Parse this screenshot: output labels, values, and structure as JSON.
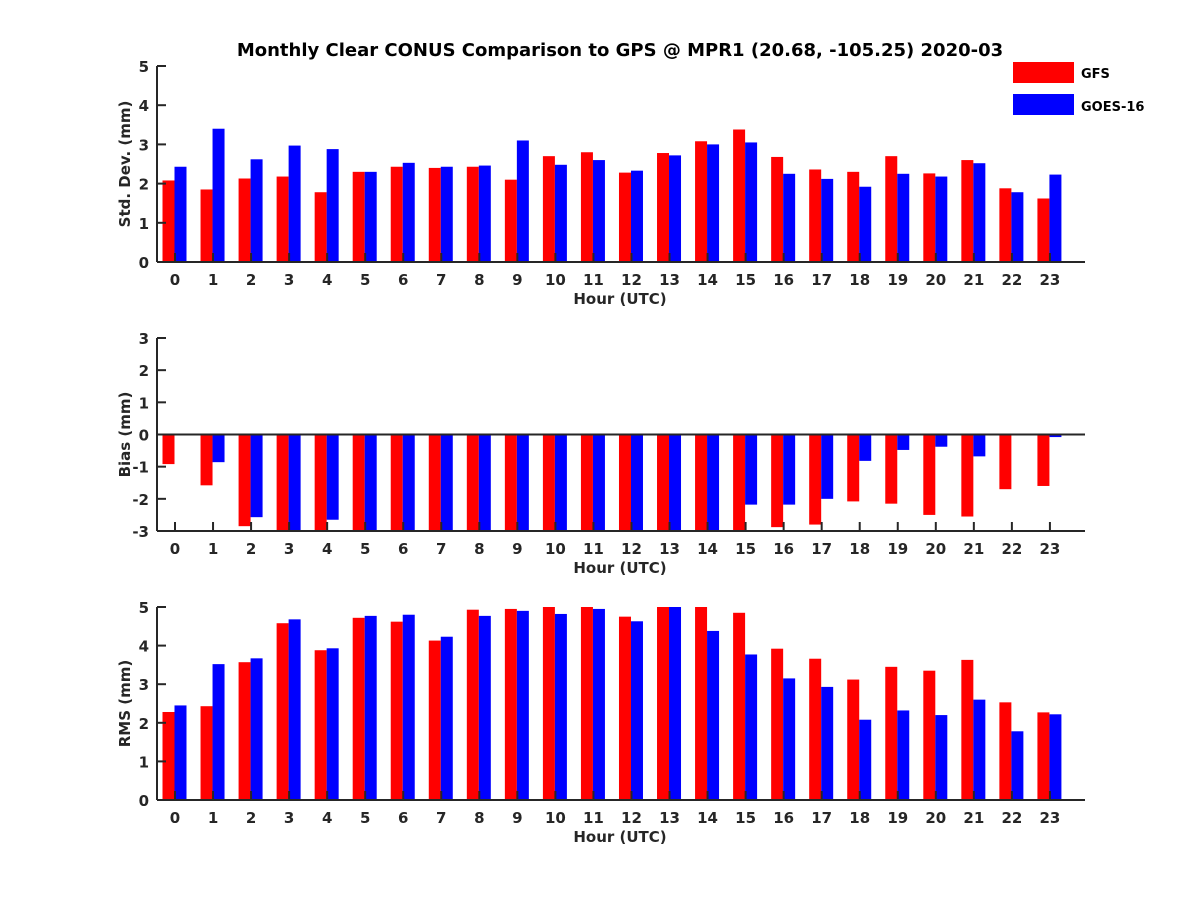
{
  "chart_data": {
    "type": "bar",
    "title": "Monthly Clear CONUS Comparison to GPS @ MPR1 (20.68, -105.25) 2020-03",
    "legend": {
      "placement": "top-right",
      "entries": [
        {
          "name": "GFS",
          "color": "#ff0000"
        },
        {
          "name": "GOES-16",
          "color": "#0000ff"
        }
      ]
    },
    "categories": [
      "0",
      "1",
      "2",
      "3",
      "4",
      "5",
      "6",
      "7",
      "8",
      "9",
      "10",
      "11",
      "12",
      "13",
      "14",
      "15",
      "16",
      "17",
      "18",
      "19",
      "20",
      "21",
      "22",
      "23"
    ],
    "panels": [
      {
        "id": "stddev",
        "xlabel": "Hour (UTC)",
        "ylabel": "Std. Dev. (mm)",
        "ylim": [
          0,
          5
        ],
        "yticks": [
          "0",
          "1",
          "2",
          "3",
          "4",
          "5"
        ],
        "ytick_values": [
          0,
          1,
          2,
          3,
          4,
          5
        ],
        "series": [
          {
            "name": "GFS",
            "values": [
              2.08,
              1.85,
              2.13,
              2.18,
              1.78,
              2.3,
              2.43,
              2.4,
              2.43,
              2.1,
              2.7,
              2.8,
              2.28,
              2.78,
              3.08,
              3.38,
              2.68,
              2.36,
              2.3,
              2.7,
              2.26,
              2.6,
              1.88,
              1.62
            ]
          },
          {
            "name": "GOES-16",
            "values": [
              2.43,
              3.4,
              2.62,
              2.97,
              2.88,
              2.3,
              2.53,
              2.43,
              2.46,
              3.1,
              2.48,
              2.6,
              2.33,
              2.72,
              3.0,
              3.05,
              2.25,
              2.12,
              1.92,
              2.25,
              2.18,
              2.52,
              1.78,
              2.23
            ]
          }
        ]
      },
      {
        "id": "bias",
        "xlabel": "Hour (UTC)",
        "ylabel": "Bias (mm)",
        "ylim": [
          -3,
          3
        ],
        "yticks": [
          "-3",
          "-2",
          "-1",
          "0",
          "1",
          "2",
          "3"
        ],
        "ytick_values": [
          -3,
          -2,
          -1,
          0,
          1,
          2,
          3
        ],
        "series": [
          {
            "name": "GFS",
            "values": [
              -0.92,
              -1.58,
              -2.85,
              -3.0,
              -3.0,
              -3.0,
              -3.0,
              -3.0,
              -3.0,
              -3.0,
              -3.0,
              -3.0,
              -3.0,
              -3.0,
              -3.0,
              -3.0,
              -2.88,
              -2.8,
              -2.08,
              -2.15,
              -2.5,
              -2.55,
              -1.7,
              -1.6
            ]
          },
          {
            "name": "GOES-16",
            "values": [
              0.0,
              -0.86,
              -2.57,
              -3.0,
              -2.65,
              -3.0,
              -3.0,
              -3.0,
              -3.0,
              -3.0,
              -3.0,
              -3.0,
              -3.0,
              -3.0,
              -3.0,
              -2.18,
              -2.18,
              -2.0,
              -0.82,
              -0.48,
              -0.38,
              -0.68,
              0.02,
              -0.08
            ]
          }
        ]
      },
      {
        "id": "rms",
        "xlabel": "Hour (UTC)",
        "ylabel": "RMS (mm)",
        "ylim": [
          0,
          5
        ],
        "yticks": [
          "0",
          "1",
          "2",
          "3",
          "4",
          "5"
        ],
        "ytick_values": [
          0,
          1,
          2,
          3,
          4,
          5
        ],
        "series": [
          {
            "name": "GFS",
            "values": [
              2.28,
              2.43,
              3.57,
              4.58,
              3.88,
              4.72,
              4.62,
              4.13,
              4.93,
              4.95,
              5.0,
              5.0,
              4.75,
              5.0,
              5.0,
              4.85,
              3.92,
              3.66,
              3.12,
              3.45,
              3.35,
              3.63,
              2.53,
              2.27
            ]
          },
          {
            "name": "GOES-16",
            "values": [
              2.45,
              3.52,
              3.67,
              4.68,
              3.93,
              4.77,
              4.8,
              4.23,
              4.77,
              4.9,
              4.82,
              4.95,
              4.63,
              5.0,
              4.38,
              3.77,
              3.15,
              2.93,
              2.08,
              2.32,
              2.2,
              2.6,
              1.78,
              2.22
            ]
          }
        ]
      }
    ]
  }
}
